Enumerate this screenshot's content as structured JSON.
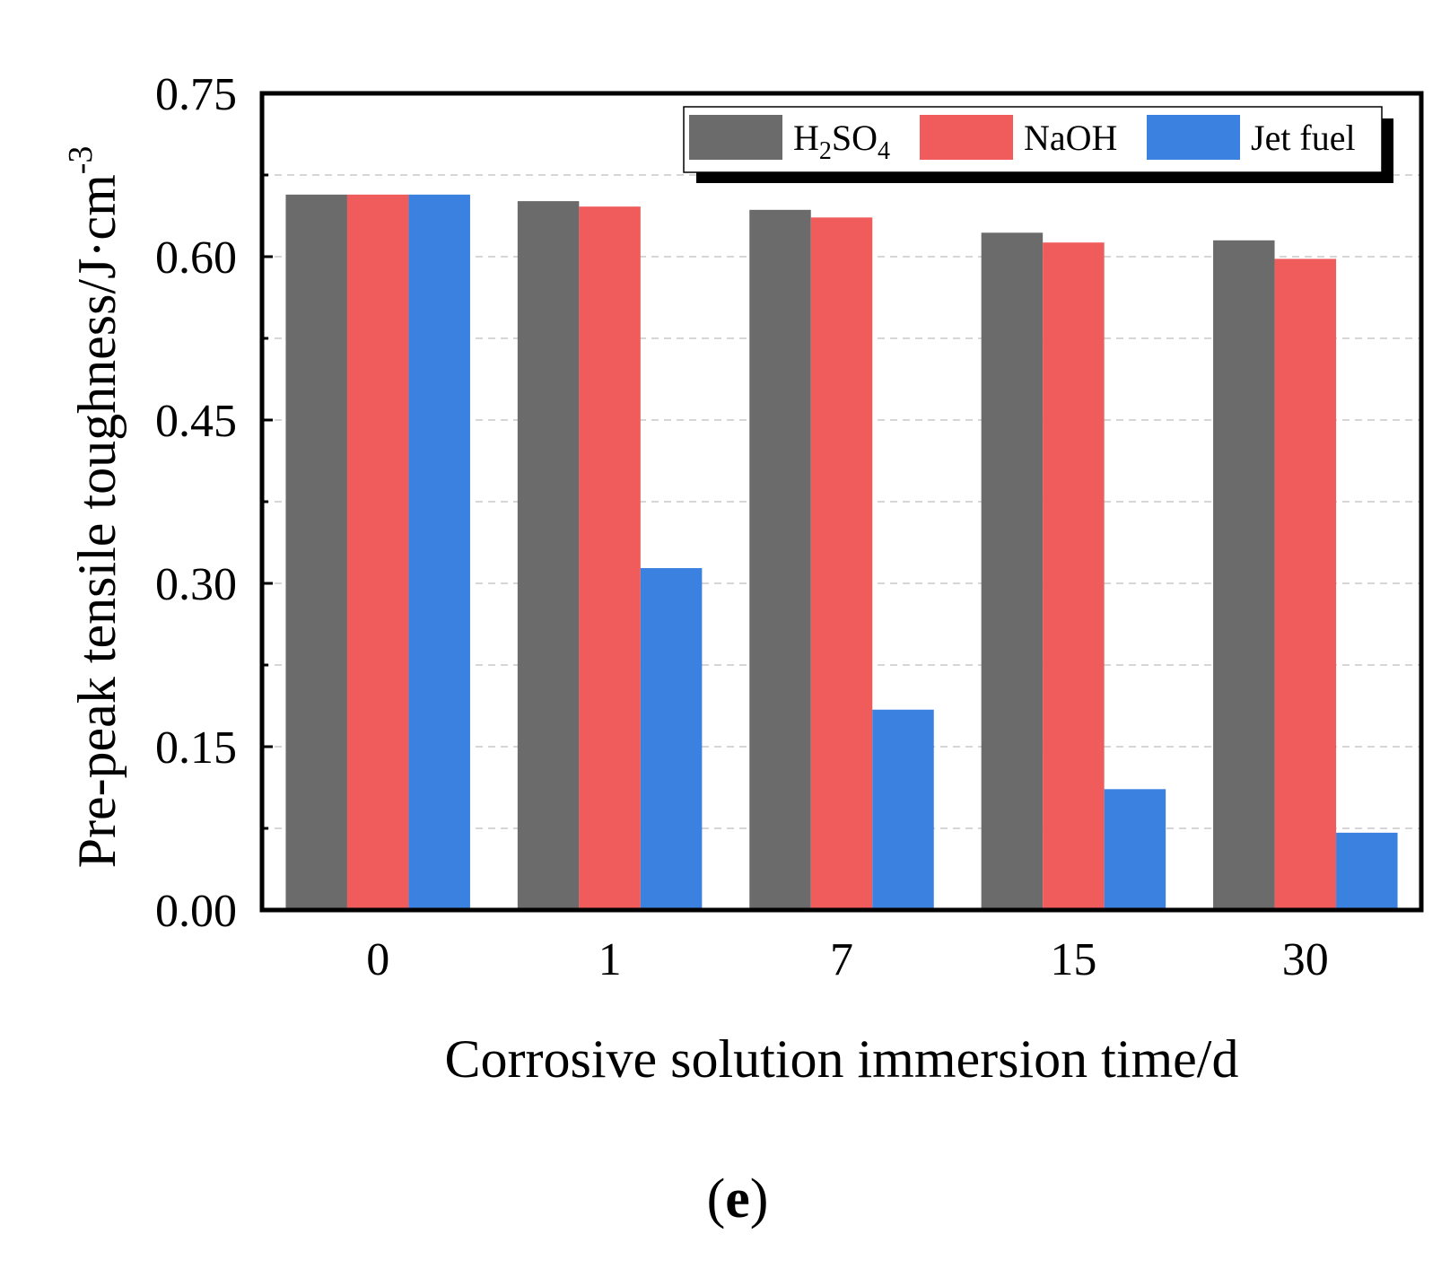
{
  "chart_data": {
    "type": "bar",
    "categories": [
      "0",
      "1",
      "7",
      "15",
      "30"
    ],
    "series": [
      {
        "name": "H2SO4",
        "label_main": "H",
        "label_sub1": "2",
        "label_mid": "SO",
        "label_sub2": "4",
        "color": "#6b6b6b",
        "values": [
          0.657,
          0.651,
          0.643,
          0.622,
          0.615
        ]
      },
      {
        "name": "NaOH",
        "label": "NaOH",
        "color": "#f05c5c",
        "values": [
          0.657,
          0.646,
          0.636,
          0.613,
          0.598
        ]
      },
      {
        "name": "Jet fuel",
        "label": "Jet fuel",
        "color": "#3b82e0",
        "values": [
          0.657,
          0.314,
          0.184,
          0.111,
          0.071
        ]
      }
    ],
    "y_ticks": [
      "0.00",
      "0.15",
      "0.30",
      "0.45",
      "0.60",
      "0.75"
    ],
    "y_tick_values": [
      0,
      0.15,
      0.3,
      0.45,
      0.6,
      0.75
    ],
    "ylim": [
      0,
      0.75
    ],
    "ylabel": "Pre-peak tensile toughness/J·cm",
    "ylabel_sup": "-3",
    "xlabel": "Corrosive solution immersion time/d",
    "grid": "dashed, horizontal",
    "legend_position": "top-right"
  },
  "panel_label": {
    "open": "(",
    "letter": "e",
    "close": ")"
  }
}
